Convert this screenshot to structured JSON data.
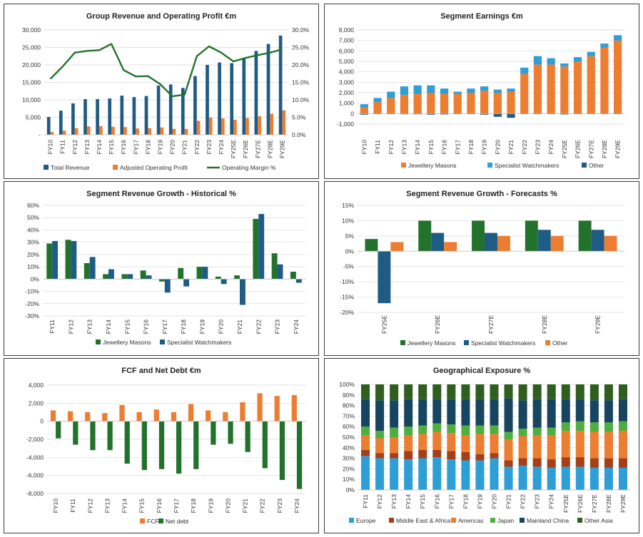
{
  "colors": {
    "navy": "#1f5c85",
    "orange": "#ed7d31",
    "green": "#23722b",
    "blue": "#2e9fd6",
    "darkred": "#a3401a",
    "lime": "#4caf3f",
    "darknavy": "#174560",
    "darkgreen": "#2f5e1f",
    "gridline": "#d9d9d9"
  },
  "chart_data": [
    {
      "type": "bar",
      "title": "Group Revenue and Operating Profit €m",
      "categories": [
        "FY10",
        "FY11",
        "FY12",
        "FY13",
        "FY14",
        "FY15",
        "FY16",
        "FY17",
        "FY18",
        "FY19",
        "FY20",
        "FY21",
        "FY22",
        "FY23",
        "FY24",
        "FY25E",
        "FY26E",
        "FY27E",
        "FY28E",
        "FY29E"
      ],
      "yticks": [
        "30,000",
        "25,000",
        "20,000",
        "15,000",
        "10,000",
        "5,000",
        "-"
      ],
      "ylim": [
        0,
        30000
      ],
      "y2ticks": [
        "30.0%",
        "25.0%",
        "20.0%",
        "15.0%",
        "10.0%",
        "5.0%",
        "0.0%"
      ],
      "y2lim": [
        0,
        0.3
      ],
      "series": [
        {
          "name": "Total Revenue",
          "kind": "bar",
          "color": "#1f5c85",
          "values": [
            5100,
            6900,
            9000,
            10200,
            10200,
            10400,
            11200,
            10800,
            11100,
            14100,
            14400,
            13400,
            16800,
            20000,
            20700,
            20500,
            22000,
            24000,
            26000,
            28400
          ]
        },
        {
          "name": "Adjusted Operating Profit",
          "kind": "bar",
          "color": "#ed7d31",
          "values": [
            800,
            1200,
            1900,
            2400,
            2500,
            2300,
            2200,
            1800,
            1900,
            2100,
            1700,
            1700,
            4000,
            4900,
            4700,
            4300,
            4800,
            5300,
            6000,
            7000
          ]
        },
        {
          "name": "Operating Margin %",
          "kind": "line",
          "axis": "right",
          "color": "#23722b",
          "values": [
            0.16,
            0.195,
            0.235,
            0.24,
            0.242,
            0.26,
            0.185,
            0.167,
            0.168,
            0.145,
            0.11,
            0.115,
            0.225,
            0.253,
            0.235,
            0.21,
            0.22,
            0.228,
            0.235,
            0.245
          ]
        }
      ]
    },
    {
      "type": "bar",
      "stacked": true,
      "title": "Segment Earnings €m",
      "categories": [
        "FY10",
        "FY11",
        "FY12",
        "FY13",
        "FY14",
        "FY15",
        "FY16",
        "FY17",
        "FY18",
        "FY19",
        "FY20",
        "FY21",
        "FY22",
        "FY23",
        "FY24",
        "FY25E",
        "FY26E",
        "FY27E",
        "FY28E",
        "FY29E"
      ],
      "yticks": [
        "8,000",
        "7,000",
        "6,000",
        "5,000",
        "4,000",
        "3,000",
        "2,000",
        "1,000",
        "0",
        "-1,000"
      ],
      "ylim": [
        -1000,
        8000
      ],
      "series": [
        {
          "name": "Jewellery Masons",
          "color": "#ed7d31",
          "values": [
            600,
            1100,
            1500,
            1800,
            1900,
            2000,
            1900,
            1900,
            2000,
            2200,
            2000,
            2100,
            3800,
            4700,
            4700,
            4500,
            5000,
            5500,
            6300,
            7000
          ]
        },
        {
          "name": "Specialist Watchmakers",
          "color": "#2e9fd6",
          "values": [
            300,
            400,
            600,
            800,
            800,
            700,
            500,
            200,
            400,
            400,
            300,
            300,
            600,
            800,
            600,
            300,
            400,
            400,
            400,
            500
          ]
        },
        {
          "name": "Other",
          "color": "#1f5c85",
          "values": [
            -100,
            -50,
            -50,
            -60,
            -60,
            -100,
            -80,
            -50,
            -50,
            -100,
            -300,
            -400,
            -50,
            -50,
            -50,
            -80,
            -50,
            -50,
            -50,
            -50
          ]
        }
      ]
    },
    {
      "type": "bar",
      "title": "Segment Revenue Growth - Historical %",
      "categories": [
        "FY11",
        "FY12",
        "FY13",
        "FY14",
        "FY15",
        "FY16",
        "FY17",
        "FY18",
        "FY19",
        "FY20",
        "FY21",
        "FY22",
        "FY23",
        "FY24"
      ],
      "yticks": [
        "60%",
        "50%",
        "40%",
        "30%",
        "20%",
        "10%",
        "0%",
        "-10%",
        "-20%",
        "-30%"
      ],
      "ylim": [
        -0.3,
        0.6
      ],
      "series": [
        {
          "name": "Jewellery Masons",
          "color": "#23722b",
          "values": [
            0.29,
            0.32,
            0.13,
            0.04,
            0.04,
            0.07,
            -0.02,
            0.09,
            0.1,
            0.02,
            0.03,
            0.49,
            0.21,
            0.06
          ]
        },
        {
          "name": "Specialist Watchmakers",
          "color": "#1f5c85",
          "values": [
            0.31,
            0.31,
            0.18,
            0.08,
            0.04,
            0.03,
            -0.11,
            -0.06,
            0.1,
            -0.04,
            -0.21,
            0.53,
            0.12,
            -0.03
          ]
        }
      ]
    },
    {
      "type": "bar",
      "title": "Segment Revenue Growth - Forecasts %",
      "categories": [
        "FY25E",
        "FY26E",
        "FY27E",
        "FY28E",
        "FY29E"
      ],
      "yticks": [
        "15%",
        "10%",
        "5%",
        "0%",
        "-5%",
        "-10%",
        "-15%",
        "-20%"
      ],
      "ylim": [
        -0.2,
        0.15
      ],
      "series": [
        {
          "name": "Jewellery Masons",
          "color": "#23722b",
          "values": [
            0.04,
            0.1,
            0.1,
            0.1,
            0.1
          ]
        },
        {
          "name": "Specialist Watchmakers",
          "color": "#1f5c85",
          "values": [
            -0.17,
            0.06,
            0.06,
            0.07,
            0.07
          ]
        },
        {
          "name": "Other",
          "color": "#ed7d31",
          "values": [
            0.03,
            0.03,
            0.05,
            0.05,
            0.05
          ]
        }
      ]
    },
    {
      "type": "bar",
      "title": "FCF and Net Debt €m",
      "categories": [
        "FY10",
        "FY11",
        "FY12",
        "FY13",
        "FY14",
        "FY15",
        "FY16",
        "FY17",
        "FY18",
        "FY19",
        "FY20",
        "FY21",
        "FY22",
        "FY23",
        "FY24"
      ],
      "yticks": [
        "4,000",
        "2,000",
        "0",
        "-2,000",
        "-4,000",
        "-6,000",
        "-8,000"
      ],
      "ylim": [
        -8000,
        4000
      ],
      "series": [
        {
          "name": "FCF",
          "color": "#ed7d31",
          "values": [
            1200,
            1100,
            1000,
            900,
            1800,
            1000,
            1300,
            1000,
            1900,
            1200,
            1000,
            2100,
            3100,
            2800,
            2900
          ]
        },
        {
          "name": "Net debt",
          "color": "#23722b",
          "values": [
            -1900,
            -2600,
            -3200,
            -3200,
            -4700,
            -5400,
            -5300,
            -5800,
            -5300,
            -2600,
            -2500,
            -3400,
            -5200,
            -6500,
            -7500
          ]
        }
      ]
    },
    {
      "type": "bar",
      "stacked": true,
      "percent": true,
      "title": "Geographical Exposure %",
      "categories": [
        "FY11",
        "FY12",
        "FY13",
        "FY14",
        "FY15",
        "FY16",
        "FY17",
        "FY18",
        "FY19",
        "FY20",
        "FY21",
        "FY22",
        "FY23",
        "FY24",
        "FY25E",
        "FY26E",
        "FY27E",
        "FY28E",
        "FY29E"
      ],
      "yticks": [
        "100%",
        "90%",
        "80%",
        "70%",
        "60%",
        "50%",
        "40%",
        "30%",
        "20%",
        "10%",
        "0%"
      ],
      "ylim": [
        0,
        1
      ],
      "series": [
        {
          "name": "Europe",
          "color": "#2e9fd6",
          "values": [
            0.32,
            0.3,
            0.3,
            0.29,
            0.3,
            0.31,
            0.29,
            0.28,
            0.28,
            0.3,
            0.22,
            0.23,
            0.22,
            0.21,
            0.22,
            0.22,
            0.21,
            0.21,
            0.21
          ]
        },
        {
          "name": "Middle East & Africa",
          "color": "#a3401a",
          "values": [
            0.06,
            0.05,
            0.05,
            0.08,
            0.08,
            0.07,
            0.08,
            0.08,
            0.06,
            0.05,
            0.06,
            0.07,
            0.08,
            0.08,
            0.09,
            0.09,
            0.09,
            0.09,
            0.09
          ]
        },
        {
          "name": "Americas",
          "color": "#ed7d31",
          "values": [
            0.14,
            0.14,
            0.15,
            0.15,
            0.15,
            0.17,
            0.17,
            0.16,
            0.19,
            0.18,
            0.2,
            0.21,
            0.22,
            0.23,
            0.25,
            0.25,
            0.25,
            0.25,
            0.26
          ]
        },
        {
          "name": "Japan",
          "color": "#4caf3f",
          "values": [
            0.08,
            0.07,
            0.09,
            0.08,
            0.08,
            0.08,
            0.08,
            0.09,
            0.08,
            0.08,
            0.07,
            0.07,
            0.07,
            0.07,
            0.08,
            0.09,
            0.09,
            0.09,
            0.09
          ]
        },
        {
          "name": "Mainland China",
          "color": "#174560",
          "values": [
            0.26,
            0.29,
            0.26,
            0.26,
            0.25,
            0.23,
            0.24,
            0.25,
            0.25,
            0.25,
            0.32,
            0.27,
            0.27,
            0.27,
            0.22,
            0.21,
            0.21,
            0.21,
            0.21
          ]
        },
        {
          "name": "Other Asia",
          "color": "#2f5e1f",
          "values": [
            0.14,
            0.15,
            0.15,
            0.14,
            0.14,
            0.14,
            0.14,
            0.14,
            0.14,
            0.14,
            0.13,
            0.15,
            0.14,
            0.14,
            0.14,
            0.14,
            0.15,
            0.15,
            0.14
          ]
        }
      ]
    }
  ]
}
